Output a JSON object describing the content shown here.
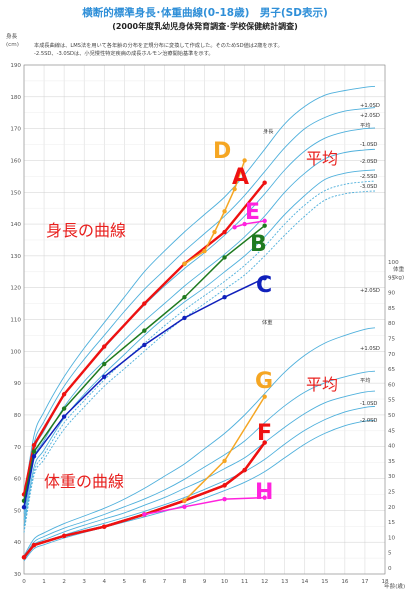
{
  "header": {
    "title": "横断的標準身長･体重曲線(0-18歳)　男子(SD表示)",
    "subtitle": "(2000年度乳幼児身体発育調査･学校保健統計調査)"
  },
  "notes": [
    "本成長曲線は、LMS法を用いて各年齢の分布を正規分布に変換して作成した。そのためSD値は2歳を示す。",
    "-2.5SD、-3.0SDは、小児慢性特定疾病の成長ホルモン治療開始基準を示す。"
  ],
  "labels": {
    "height_axis_unit": "身長",
    "height_axis_cm": "(cm)",
    "weight_axis_unit": "体重",
    "weight_axis_kg": "(kg)",
    "age_axis": "年齢(歳)",
    "height_section": "身長",
    "weight_section": "体重"
  },
  "annotations": {
    "height_curve": "身長の曲線",
    "weight_curve": "体重の曲線",
    "height_mean": "平均",
    "weight_mean": "平均"
  },
  "sd_labels_height": [
    "+2.0SD",
    "+1.0SD",
    "平均",
    "-1.0SD",
    "-2.0SD",
    "-2.5SD",
    "-3.0SD"
  ],
  "sd_labels_weight": [
    "+2.0SD",
    "+1.0SD",
    "平均",
    "-1.0SD",
    "-2.0SD"
  ],
  "chart_data": {
    "type": "line",
    "x_label": "年齢(歳)",
    "x_range": [
      0,
      18
    ],
    "x_ticks": [
      0,
      1,
      2,
      3,
      4,
      5,
      6,
      7,
      8,
      9,
      10,
      11,
      12,
      13,
      14,
      15,
      16,
      17,
      18
    ],
    "height_axis": {
      "label": "身長(cm)",
      "range": [
        30,
        190
      ],
      "ticks": [
        30,
        40,
        50,
        60,
        70,
        80,
        90,
        100,
        110,
        120,
        130,
        140,
        150,
        160,
        170,
        180,
        190
      ]
    },
    "weight_axis": {
      "label": "体重(kg)",
      "range": [
        0,
        100
      ],
      "ticks": [
        0,
        5,
        10,
        15,
        20,
        25,
        30,
        35,
        40,
        45,
        50,
        55,
        60,
        65,
        70,
        75,
        80,
        85,
        90,
        95,
        100
      ]
    },
    "height_reference": {
      "ages": [
        0,
        0.5,
        1,
        2,
        3,
        4,
        5,
        6,
        7,
        8,
        9,
        10,
        11,
        12,
        13,
        14,
        15,
        16,
        17,
        17.5
      ],
      "series": [
        {
          "name": "+2.0SD",
          "values": [
            53.5,
            73.5,
            81,
            92,
            101,
            109,
            117,
            125,
            131.5,
            137.5,
            143,
            148.5,
            155.5,
            163.5,
            171.5,
            177,
            180.5,
            182,
            183,
            183.3
          ]
        },
        {
          "name": "+1.0SD",
          "values": [
            51.5,
            71,
            78,
            89,
            97.5,
            105,
            112.5,
            119.5,
            125.5,
            131.5,
            137,
            142.5,
            149,
            156.5,
            164,
            170,
            173.5,
            175.5,
            176.3,
            176.6
          ]
        },
        {
          "name": "平均",
          "values": [
            49,
            68.5,
            75,
            86,
            94,
            101,
            108,
            114.5,
            120.5,
            126,
            131,
            136.5,
            142.5,
            149.5,
            157,
            163,
            167,
            169,
            170,
            170.2
          ]
        },
        {
          "name": "-1.0SD",
          "values": [
            47,
            66,
            72,
            82.5,
            90.5,
            97,
            103.5,
            109.5,
            115,
            120.5,
            125.5,
            130.5,
            136,
            142.5,
            150,
            156,
            160.5,
            162.5,
            163.3,
            163.5
          ]
        },
        {
          "name": "-2.0SD",
          "values": [
            45,
            63.5,
            69,
            79,
            86.5,
            93,
            99,
            105,
            110.5,
            115.5,
            120,
            125,
            130,
            136,
            143,
            149,
            154,
            156,
            156.8,
            157
          ]
        },
        {
          "name": "-2.5SD",
          "values": [
            44,
            62,
            67.5,
            77.5,
            84.5,
            91,
            97,
            102.5,
            108,
            113,
            117.5,
            122,
            127,
            133,
            140,
            146,
            150.5,
            152.5,
            153.3,
            153.5
          ]
        },
        {
          "name": "-3.0SD",
          "values": [
            43,
            61,
            66,
            75.5,
            82.5,
            89,
            94.5,
            100,
            105.5,
            110.5,
            115,
            119.5,
            124,
            130,
            136.5,
            142.5,
            147.5,
            149.5,
            150.2,
            150.4
          ]
        }
      ]
    },
    "weight_reference": {
      "ages": [
        0,
        0.5,
        1,
        2,
        3,
        4,
        5,
        6,
        7,
        8,
        9,
        10,
        11,
        12,
        13,
        14,
        15,
        16,
        17,
        17.5
      ],
      "series": [
        {
          "name": "+2.0SD",
          "values": [
            4,
            9.5,
            11.5,
            14.5,
            17,
            19.5,
            22.5,
            26,
            30,
            34,
            39,
            44,
            50,
            57,
            64,
            69.5,
            73.5,
            76,
            78,
            78.5
          ]
        },
        {
          "name": "+1.0SD",
          "values": [
            3.5,
            8.5,
            10.3,
            13,
            15.2,
            17.5,
            20,
            22.5,
            25.5,
            29,
            33,
            37,
            41.5,
            47.5,
            53,
            57.5,
            60.5,
            62.5,
            64,
            64.3
          ]
        },
        {
          "name": "平均",
          "values": [
            3,
            7.7,
            9.2,
            11.8,
            14,
            16,
            18,
            20.5,
            23,
            26,
            29,
            32.5,
            36,
            41,
            46,
            50.5,
            54,
            56,
            57.5,
            57.8
          ]
        },
        {
          "name": "-1.0SD",
          "values": [
            2.7,
            7,
            8.5,
            10.8,
            12.8,
            14.6,
            16.5,
            18.5,
            20.7,
            23,
            25.7,
            28.5,
            31.5,
            35.5,
            40.5,
            45,
            48.5,
            51,
            52.5,
            52.8
          ]
        },
        {
          "name": "-2.0SD",
          "values": [
            2.3,
            6.3,
            7.6,
            9.8,
            11.6,
            13.3,
            15,
            16.7,
            18.5,
            20.5,
            22.8,
            25.3,
            28,
            31.5,
            36,
            40.5,
            44,
            46.5,
            48,
            48.3
          ]
        }
      ]
    },
    "children": [
      {
        "label": "A",
        "color": "#ee1111",
        "height": [
          [
            0,
            55
          ],
          [
            0.5,
            70.5
          ],
          [
            2,
            86.5
          ],
          [
            4,
            101.5
          ],
          [
            6,
            115
          ],
          [
            8,
            127.5
          ],
          [
            10,
            137.5
          ],
          [
            12,
            153
          ]
        ],
        "weight": [
          [
            0,
            3.5
          ],
          [
            0.5,
            7.5
          ],
          [
            2,
            10.5
          ],
          [
            4,
            13.5
          ],
          [
            6,
            17.5
          ],
          [
            8,
            22
          ],
          [
            10,
            27
          ],
          [
            11,
            32
          ],
          [
            12,
            41
          ]
        ]
      },
      {
        "label": "B",
        "color": "#1f7a1f",
        "height": [
          [
            0,
            53
          ],
          [
            0.5,
            68.5
          ],
          [
            2,
            82
          ],
          [
            4,
            96
          ],
          [
            6,
            106.5
          ],
          [
            8,
            117
          ],
          [
            10,
            129.5
          ],
          [
            12,
            139.5
          ]
        ]
      },
      {
        "label": "C",
        "color": "#1020bb",
        "height": [
          [
            0,
            51
          ],
          [
            0.5,
            67
          ],
          [
            2,
            79.5
          ],
          [
            4,
            92
          ],
          [
            6,
            102
          ],
          [
            8,
            110.5
          ],
          [
            10,
            117
          ],
          [
            12,
            123
          ]
        ]
      },
      {
        "label": "D",
        "color": "#f5a623",
        "height": [
          [
            8,
            127.5
          ],
          [
            9,
            131.5
          ],
          [
            9.5,
            137.5
          ],
          [
            10,
            144
          ],
          [
            10.5,
            151
          ],
          [
            11,
            160
          ]
        ]
      },
      {
        "label": "E",
        "color": "#ff22dd",
        "height": [
          [
            10.5,
            139
          ],
          [
            11,
            140
          ],
          [
            12,
            141
          ]
        ]
      },
      {
        "label": "F",
        "color": "#ee1111",
        "weight": [
          [
            0,
            3.5
          ],
          [
            0.5,
            7.5
          ],
          [
            2,
            10.5
          ],
          [
            4,
            13.5
          ],
          [
            6,
            17.5
          ],
          [
            8,
            22
          ],
          [
            10,
            27
          ],
          [
            11,
            32
          ],
          [
            12,
            41
          ]
        ]
      },
      {
        "label": "G",
        "color": "#f5a623",
        "weight": [
          [
            8,
            22
          ],
          [
            10,
            35
          ],
          [
            12,
            56
          ]
        ]
      },
      {
        "label": "H",
        "color": "#ff22dd",
        "weight": [
          [
            6,
            17.5
          ],
          [
            8,
            20
          ],
          [
            10,
            22.5
          ],
          [
            12,
            23
          ]
        ]
      }
    ]
  }
}
